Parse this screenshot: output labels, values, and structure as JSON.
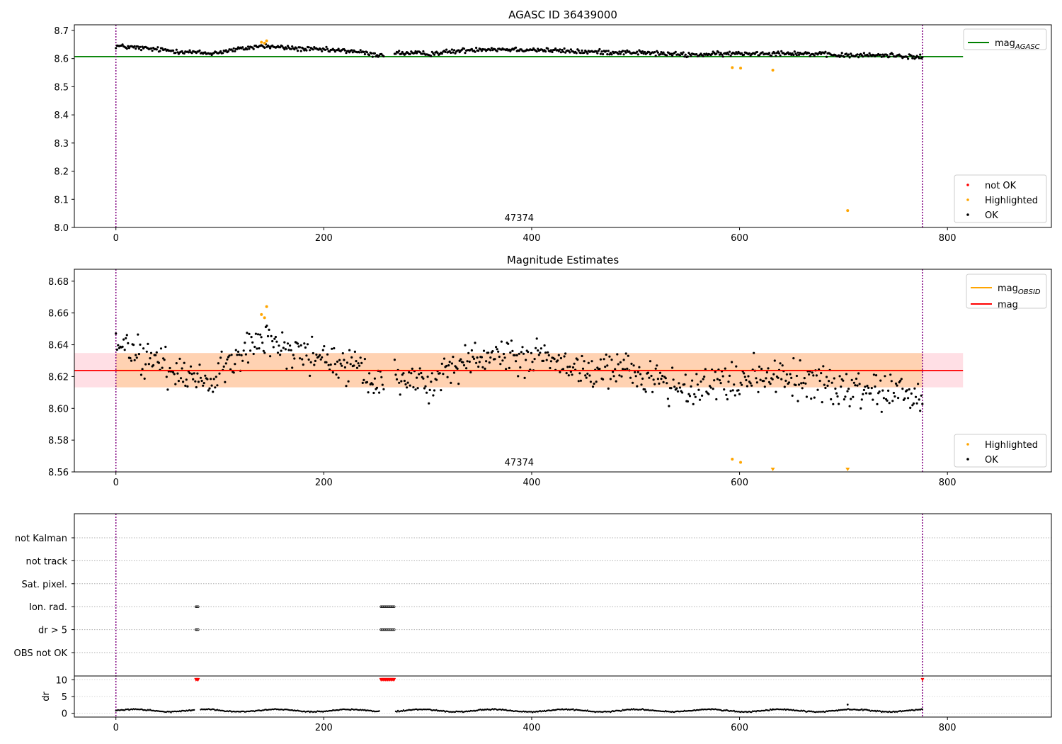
{
  "chart_data": [
    {
      "type": "scatter",
      "title": "AGASC ID 36439000",
      "xlim": [
        -40,
        900
      ],
      "ylim": [
        8.0,
        8.72
      ],
      "xticks": [
        0,
        200,
        400,
        600,
        800
      ],
      "yticks": [
        8.0,
        8.1,
        8.2,
        8.3,
        8.4,
        8.5,
        8.6,
        8.7
      ],
      "ytick_labels": [
        "8.0",
        "8.1",
        "8.2",
        "8.3",
        "8.4",
        "8.5",
        "8.6",
        "8.7"
      ],
      "obs_boundaries": [
        0,
        776
      ],
      "obs_label": "47374",
      "obs_label_x": 388,
      "mag_agasc": 8.607,
      "mag_agasc_x_range": [
        -40,
        815
      ],
      "legend_lines": [
        {
          "name": "mag",
          "sub": "AGASC",
          "color": "#008000"
        }
      ],
      "legend_markers": [
        {
          "name": "not OK",
          "color": "#ff0000"
        },
        {
          "name": "Highlighted",
          "color": "#ffa500"
        },
        {
          "name": "OK",
          "color": "#000000"
        }
      ],
      "highlighted": [
        [
          140,
          8.658
        ],
        [
          143,
          8.655
        ],
        [
          145,
          8.663
        ],
        [
          593,
          8.568
        ],
        [
          601,
          8.566
        ],
        [
          632,
          8.559
        ],
        [
          704,
          8.06
        ]
      ],
      "ok_trend": {
        "x": [
          0,
          40,
          90,
          140,
          180,
          230,
          250,
          270,
          300,
          350,
          400,
          450,
          500,
          550,
          600,
          650,
          700,
          750,
          776
        ],
        "y": [
          8.645,
          8.632,
          8.618,
          8.645,
          8.634,
          8.626,
          8.612,
          8.62,
          8.617,
          8.634,
          8.632,
          8.624,
          8.622,
          8.613,
          8.618,
          8.62,
          8.611,
          8.612,
          8.603
        ]
      },
      "ok_spread": 0.006,
      "ok_gap": [
        258,
        268
      ]
    },
    {
      "type": "scatter",
      "title": "Magnitude Estimates",
      "xlim": [
        -40,
        900
      ],
      "ylim": [
        8.56,
        8.6875
      ],
      "xticks": [
        0,
        200,
        400,
        600,
        800
      ],
      "yticks": [
        8.56,
        8.58,
        8.6,
        8.62,
        8.64,
        8.66,
        8.68
      ],
      "ytick_labels": [
        "8.56",
        "8.58",
        "8.60",
        "8.62",
        "8.64",
        "8.66",
        "8.68"
      ],
      "obs_boundaries": [
        0,
        776
      ],
      "obs_label": "47374",
      "obs_label_x": 388,
      "mag": 8.6238,
      "mag_band": [
        8.6132,
        8.6348
      ],
      "mag_obsid": 8.6238,
      "band_x_range": [
        -40,
        815
      ],
      "legend_lines": [
        {
          "name": "mag",
          "sub": "OBSID",
          "color": "#ffa500"
        },
        {
          "name": "mag",
          "sub": "",
          "color": "#ff0000"
        }
      ],
      "legend_markers": [
        {
          "name": "Highlighted",
          "color": "#ffa500"
        },
        {
          "name": "OK",
          "color": "#000000"
        }
      ],
      "highlighted": [
        [
          140,
          8.659
        ],
        [
          143,
          8.657
        ],
        [
          145,
          8.664
        ],
        [
          593,
          8.568
        ],
        [
          601,
          8.566
        ]
      ],
      "highlighted_offscale": [
        632,
        704
      ],
      "ok_trend": {
        "x": [
          0,
          40,
          90,
          140,
          180,
          230,
          250,
          270,
          300,
          350,
          400,
          450,
          500,
          550,
          600,
          650,
          700,
          750,
          776
        ],
        "y": [
          8.64,
          8.628,
          8.617,
          8.645,
          8.634,
          8.626,
          8.612,
          8.62,
          8.617,
          8.634,
          8.632,
          8.624,
          8.622,
          8.613,
          8.618,
          8.62,
          8.611,
          8.612,
          8.603
        ]
      },
      "ok_spread": 0.008,
      "ok_gap": [
        258,
        268
      ]
    },
    {
      "type": "scatter",
      "title": "",
      "xlim": [
        -40,
        900
      ],
      "xticks": [
        0,
        200,
        400,
        600,
        800
      ],
      "flag_rows": [
        "not Kalman",
        "not track",
        "Sat. pixel.",
        "Ion. rad.",
        "dr > 5",
        "OBS not OK"
      ],
      "flag_points": {
        "Ion. rad.": [
          [
            77,
            80
          ],
          [
            255,
            268
          ]
        ],
        "dr > 5": [
          [
            77,
            80
          ],
          [
            255,
            268
          ]
        ]
      },
      "obs_boundaries": [
        0,
        776
      ],
      "dr_ylabel": "dr",
      "dr_yticks": [
        0,
        5,
        10
      ],
      "dr_ylim": [
        -0.5,
        10.5
      ],
      "dr_clipped": [
        [
          77,
          80
        ],
        [
          255,
          268
        ],
        [
          776,
          776
        ]
      ],
      "dr_baseline": 0.8,
      "dr_outliers": [
        [
          704,
          2.6
        ],
        [
          632,
          1.2
        ]
      ]
    }
  ]
}
